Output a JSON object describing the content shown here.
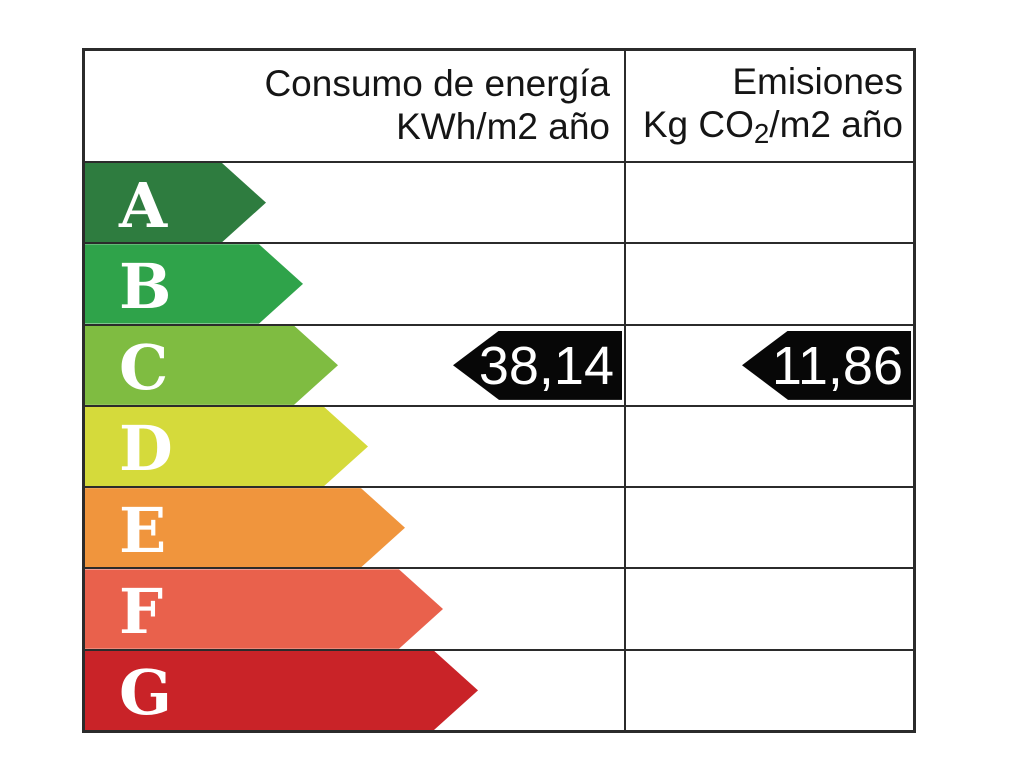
{
  "header": {
    "consumption": {
      "line1": "Consumo de energía",
      "line2": "KWh/m2 año"
    },
    "emissions": {
      "line1": "Emisiones",
      "line2_prefix": "Kg CO",
      "line2_sub": "2",
      "line2_suffix": "/m2 año"
    }
  },
  "ratings": [
    {
      "letter": "A",
      "color": "#2e7c3f",
      "consumption_value": "",
      "emissions_value": ""
    },
    {
      "letter": "B",
      "color": "#2fa34a",
      "consumption_value": "",
      "emissions_value": ""
    },
    {
      "letter": "C",
      "color": "#7fbc41",
      "consumption_value": "38,14",
      "emissions_value": "11,86"
    },
    {
      "letter": "D",
      "color": "#d5da3b",
      "consumption_value": "",
      "emissions_value": ""
    },
    {
      "letter": "E",
      "color": "#f0953d",
      "consumption_value": "",
      "emissions_value": ""
    },
    {
      "letter": "F",
      "color": "#e9614c",
      "consumption_value": "",
      "emissions_value": ""
    },
    {
      "letter": "G",
      "color": "#c92328",
      "consumption_value": "",
      "emissions_value": ""
    }
  ],
  "value_arrow_color": "#070707",
  "grid_color": "#2b2b2b",
  "chart_data": {
    "type": "bar",
    "categories": [
      "A",
      "B",
      "C",
      "D",
      "E",
      "F",
      "G"
    ],
    "series": [
      {
        "name": "Consumo de energía KWh/m2 año",
        "rating": "C",
        "value": 38.14,
        "display": "38,14"
      },
      {
        "name": "Emisiones Kg CO2/m2 año",
        "rating": "C",
        "value": 11.86,
        "display": "11,86"
      }
    ],
    "title": "",
    "legend_position": "none",
    "notes": "Spanish energy efficiency certificate scale; colored arrows A (dark green) to G (red); black left-pointing arrows mark rated values on row C"
  }
}
